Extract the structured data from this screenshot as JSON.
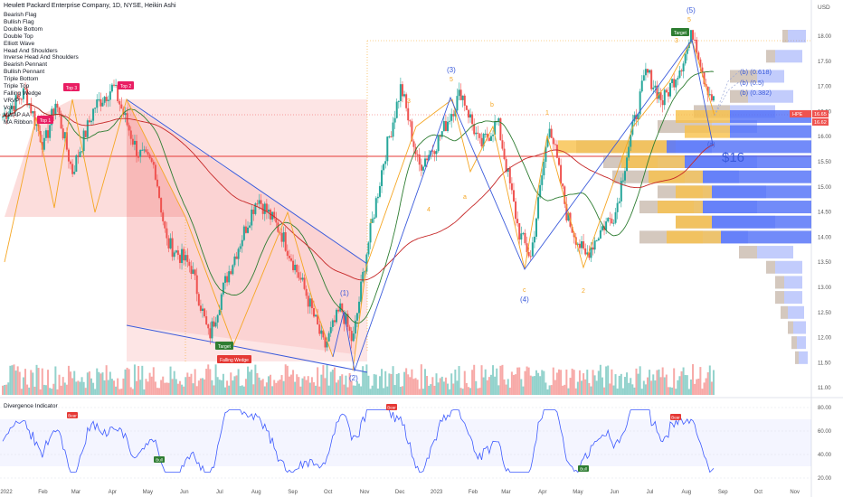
{
  "header": {
    "title": "Hewlett Packard Enterprise Company, 1D, NYSE, Heikin Ashi",
    "currency": "USD"
  },
  "indicators": [
    "Bearish Flag",
    "Bullish Flag",
    "Double Bottom",
    "Double Top",
    "Elliott Wave",
    "Head And Shoulders",
    "Inverse Head And Shoulders",
    "Bearish Pennant",
    "Bullish Pennant",
    "Triple Bottom",
    "Triple Top",
    "Falling Wedge",
    "VRVP",
    "Vol",
    "VWAP AA",
    "MA Ribbon"
  ],
  "oscillator": {
    "title": "Divergence Indicator",
    "ticks": [
      "80.00",
      "60.00",
      "40.00",
      "20.00"
    ]
  },
  "colors": {
    "up": "#26a69a",
    "down": "#ef5350",
    "pattern": "#f5a623",
    "wedge_line": "#3b5bdb",
    "red_line": "#e53935",
    "vrvp_up": "#f7c04a",
    "vrvp_down": "#4f6ef7",
    "osc_line": "#3d5afe"
  },
  "chart_data": {
    "type": "candlestick",
    "y_ticks": [
      "18.00",
      "17.50",
      "17.00",
      "16.50",
      "16.00",
      "15.50",
      "15.00",
      "14.50",
      "14.00",
      "13.50",
      "13.00",
      "12.50",
      "12.00",
      "11.50",
      "11.00"
    ],
    "x_ticks": [
      "2022",
      "Feb",
      "Mar",
      "Apr",
      "May",
      "Jun",
      "Jul",
      "Aug",
      "Sep",
      "Oct",
      "Nov",
      "Dec",
      "2023",
      "Feb",
      "Mar",
      "Apr",
      "May",
      "Jun",
      "Jul",
      "Aug",
      "Sep",
      "Oct",
      "Nov"
    ],
    "current_price": "16.65",
    "price_label_2": "16.62",
    "ticker": "HPE",
    "anchors": [
      [
        "2022-01",
        16.4
      ],
      [
        "2022-01-20",
        16.9
      ],
      [
        "2022-02-05",
        15.8
      ],
      [
        "2022-02-15",
        16.7
      ],
      [
        "2022-03-01",
        15.3
      ],
      [
        "2022-03-20",
        16.6
      ],
      [
        "2022-04-05",
        17.0
      ],
      [
        "2022-04-25",
        15.7
      ],
      [
        "2022-05-10",
        15.4
      ],
      [
        "2022-05-20",
        13.9
      ],
      [
        "2022-06-10",
        13.4
      ],
      [
        "2022-06-25",
        12.0
      ],
      [
        "2022-07-10",
        13.2
      ],
      [
        "2022-08-05",
        14.8
      ],
      [
        "2022-08-25",
        14.1
      ],
      [
        "2022-09-15",
        12.9
      ],
      [
        "2022-10-01",
        11.8
      ],
      [
        "2022-10-15",
        12.6
      ],
      [
        "2022-10-25",
        11.9
      ],
      [
        "2022-11-05",
        13.6
      ],
      [
        "2022-11-20",
        15.5
      ],
      [
        "2022-12-05",
        17.0
      ],
      [
        "2022-12-20",
        15.4
      ],
      [
        "2023-01-05",
        15.9
      ],
      [
        "2023-01-25",
        16.9
      ],
      [
        "2023-02-10",
        15.8
      ],
      [
        "2023-02-25",
        16.3
      ],
      [
        "2023-03-15",
        14.1
      ],
      [
        "2023-03-25",
        13.6
      ],
      [
        "2023-04-10",
        16.3
      ],
      [
        "2023-04-25",
        14.4
      ],
      [
        "2023-05-10",
        13.6
      ],
      [
        "2023-05-25",
        14.2
      ],
      [
        "2023-06-05",
        14.5
      ],
      [
        "2023-06-15",
        15.7
      ],
      [
        "2023-07-01",
        17.3
      ],
      [
        "2023-07-15",
        16.7
      ],
      [
        "2023-08-01",
        17.5
      ],
      [
        "2023-08-10",
        18.1
      ],
      [
        "2023-08-20",
        17.1
      ],
      [
        "2023-08-28",
        16.65
      ]
    ],
    "elliott_labels": [
      "(1)",
      "(2)",
      "(3)",
      "(4)",
      "(5)",
      "3",
      "4",
      "5",
      "a",
      "b",
      "c",
      "1",
      "2",
      "(a)"
    ],
    "annotations": {
      "top1": "Top 1",
      "top2": "Top 2",
      "top3": "Top 3",
      "target1": "Target",
      "falling_wedge": "Falling Wedge",
      "target2": "Target",
      "fib_618": "(b) (0.618)",
      "fib_5": "(b) (0.5)",
      "fib_382": "(b) (0.382)",
      "level_label": "$16",
      "wave_a": "(a)"
    },
    "osc_labels": {
      "bear1": "Bear",
      "bear2": "Bear",
      "bear3": "Bear",
      "bull1": "Bull",
      "bull2": "Bull"
    }
  }
}
